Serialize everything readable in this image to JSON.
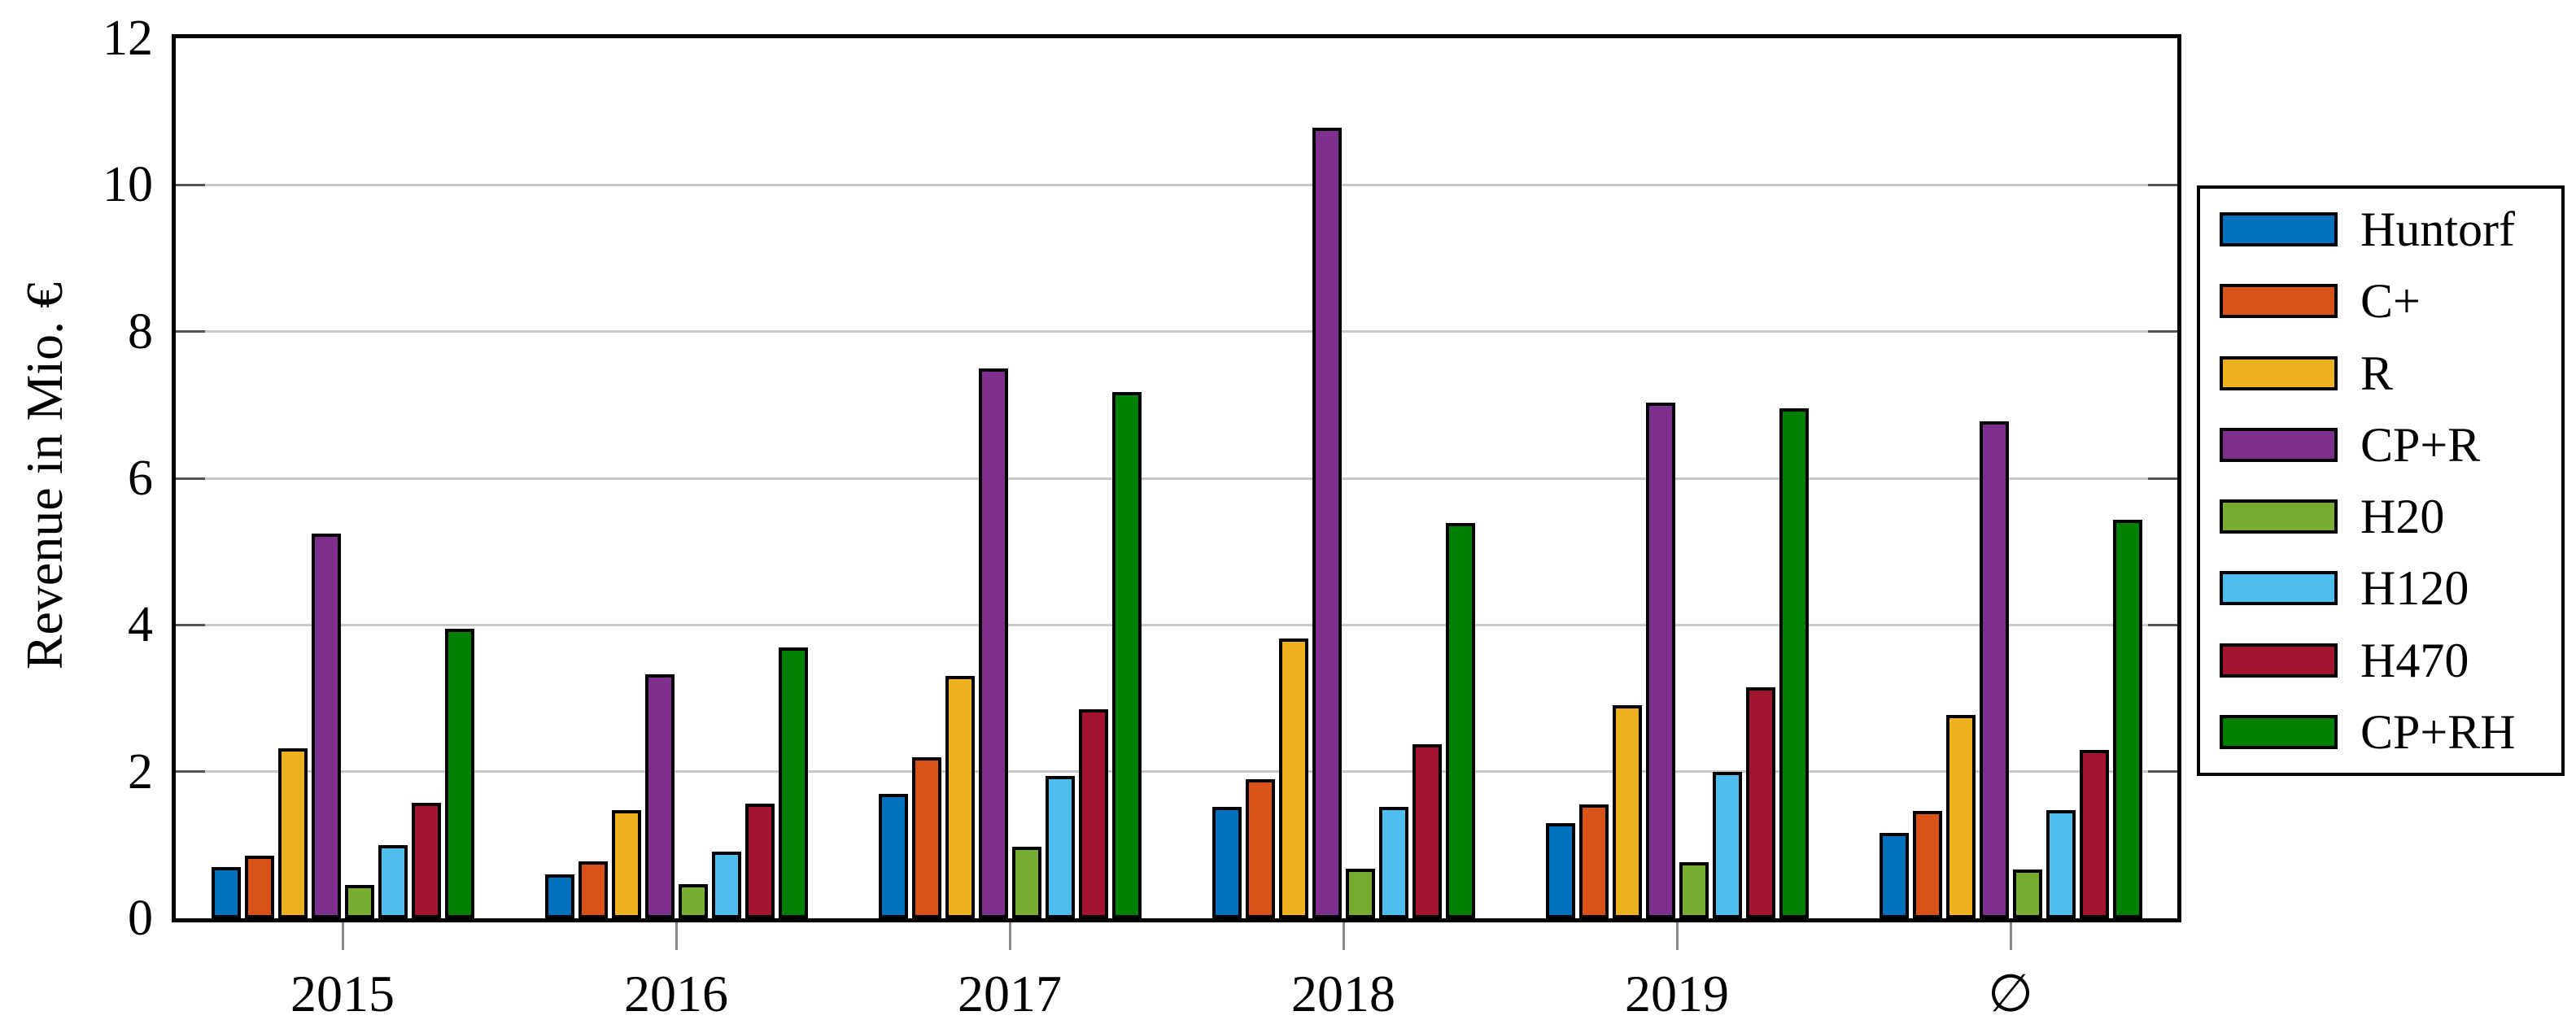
{
  "figure": {
    "background": "#ffffff",
    "border_color": "#000000",
    "grid_color": "#c9c9c9",
    "tick_color": "#555555",
    "xtick_color": "#8a8a8a"
  },
  "chart_data": {
    "type": "bar",
    "title": "",
    "xlabel": "",
    "ylabel": "Revenue in Mio. €",
    "ylim": [
      0,
      12
    ],
    "y_ticks": [
      0,
      2,
      4,
      6,
      8,
      10,
      12
    ],
    "y_gridlines": [
      2,
      4,
      6,
      8,
      10
    ],
    "grid": "horizontal",
    "legend_position": "outside-right",
    "categories": [
      "2015",
      "2016",
      "2017",
      "2018",
      "2019",
      "∅"
    ],
    "series": [
      {
        "name": "Huntorf",
        "color": "#0072BD",
        "values": [
          0.7,
          0.6,
          1.7,
          1.52,
          1.3,
          1.16
        ]
      },
      {
        "name": "C+",
        "color": "#D95319",
        "values": [
          0.85,
          0.78,
          2.2,
          1.9,
          1.55,
          1.46
        ]
      },
      {
        "name": "R",
        "color": "#EDB120",
        "values": [
          2.32,
          1.47,
          3.31,
          3.82,
          2.91,
          2.77
        ]
      },
      {
        "name": "CP+R",
        "color": "#7E2F8E",
        "values": [
          5.25,
          3.33,
          7.5,
          10.78,
          7.03,
          6.78
        ]
      },
      {
        "name": "H20",
        "color": "#77AC30",
        "values": [
          0.46,
          0.47,
          0.98,
          0.68,
          0.77,
          0.67
        ]
      },
      {
        "name": "H120",
        "color": "#4DBEEE",
        "values": [
          1.0,
          0.91,
          1.94,
          1.52,
          2.0,
          1.47
        ]
      },
      {
        "name": "H470",
        "color": "#A2142F",
        "values": [
          1.57,
          1.56,
          2.85,
          2.37,
          3.15,
          2.3
        ]
      },
      {
        "name": "CP+RH",
        "color": "#008000",
        "values": [
          3.95,
          3.69,
          7.18,
          5.39,
          6.95,
          5.43
        ]
      }
    ]
  }
}
